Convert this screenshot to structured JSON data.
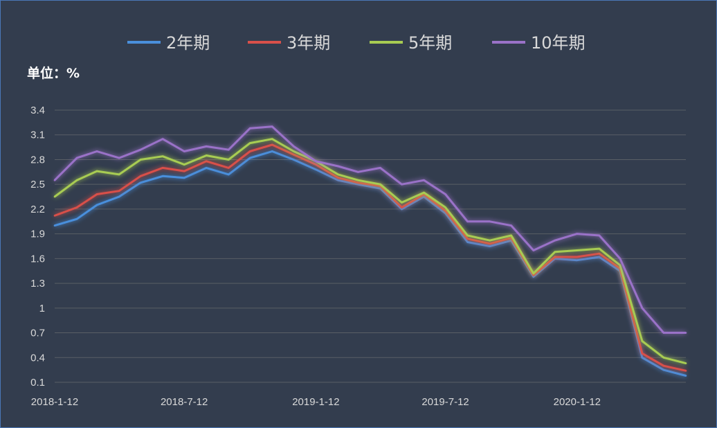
{
  "chart_data": {
    "type": "line",
    "unit_label": "单位：%",
    "legend_position": "top",
    "grid": true,
    "ylim": [
      0.1,
      3.4
    ],
    "yticks": [
      "3.4",
      "3.1",
      "2.8",
      "2.5",
      "2.2",
      "1.9",
      "1.6",
      "1.3",
      "1",
      "0.7",
      "0.4",
      "0.1"
    ],
    "xticks": [
      "2018-1-12",
      "2018-7-12",
      "2019-1-12",
      "2019-7-12",
      "2020-1-12"
    ],
    "x": [
      "2018-01-12",
      "2018-02-12",
      "2018-03-12",
      "2018-04-12",
      "2018-05-12",
      "2018-06-12",
      "2018-07-12",
      "2018-08-12",
      "2018-09-12",
      "2018-10-12",
      "2018-11-12",
      "2018-12-12",
      "2019-01-12",
      "2019-02-12",
      "2019-03-12",
      "2019-04-12",
      "2019-05-12",
      "2019-06-12",
      "2019-07-12",
      "2019-08-12",
      "2019-09-12",
      "2019-10-12",
      "2019-11-12",
      "2019-12-12",
      "2020-01-12",
      "2020-02-12",
      "2020-03-12",
      "2020-04-12",
      "2020-05-12",
      "2020-06-12"
    ],
    "series": [
      {
        "name": "2年期",
        "color": "#4a8fdc",
        "values": [
          2.0,
          2.08,
          2.25,
          2.35,
          2.52,
          2.6,
          2.58,
          2.7,
          2.62,
          2.82,
          2.9,
          2.8,
          2.68,
          2.55,
          2.5,
          2.45,
          2.2,
          2.35,
          2.15,
          1.8,
          1.75,
          1.82,
          1.38,
          1.6,
          1.58,
          1.62,
          1.45,
          0.4,
          0.25,
          0.18
        ]
      },
      {
        "name": "3年期",
        "color": "#d9504a",
        "values": [
          2.12,
          2.22,
          2.38,
          2.42,
          2.6,
          2.7,
          2.66,
          2.78,
          2.7,
          2.9,
          2.98,
          2.86,
          2.74,
          2.58,
          2.52,
          2.48,
          2.22,
          2.38,
          2.18,
          1.84,
          1.78,
          1.85,
          1.4,
          1.62,
          1.62,
          1.66,
          1.48,
          0.45,
          0.3,
          0.24
        ]
      },
      {
        "name": "5年期",
        "color": "#a8cc52",
        "values": [
          2.35,
          2.55,
          2.66,
          2.62,
          2.8,
          2.84,
          2.74,
          2.85,
          2.8,
          3.0,
          3.05,
          2.9,
          2.78,
          2.62,
          2.55,
          2.5,
          2.28,
          2.4,
          2.22,
          1.88,
          1.82,
          1.88,
          1.42,
          1.68,
          1.7,
          1.72,
          1.52,
          0.6,
          0.4,
          0.33
        ]
      },
      {
        "name": "10年期",
        "color": "#9a72c8",
        "values": [
          2.55,
          2.82,
          2.9,
          2.82,
          2.92,
          3.05,
          2.9,
          2.96,
          2.92,
          3.18,
          3.2,
          2.96,
          2.78,
          2.72,
          2.65,
          2.7,
          2.5,
          2.55,
          2.38,
          2.05,
          2.05,
          2.0,
          1.7,
          1.82,
          1.9,
          1.88,
          1.6,
          1.0,
          0.7,
          0.7
        ]
      }
    ]
  }
}
